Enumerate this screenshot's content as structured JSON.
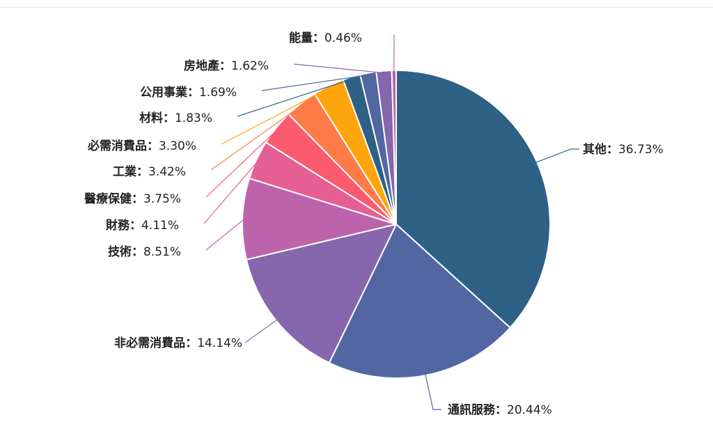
{
  "chart_data": {
    "type": "pie",
    "slices": [
      {
        "name": "其他",
        "value": 36.73,
        "label": "36.73%",
        "color": "#2d6186"
      },
      {
        "name": "通訊服務",
        "value": 20.44,
        "label": "20.44%",
        "color": "#5267a2"
      },
      {
        "name": "非必需消費品",
        "value": 14.14,
        "label": "14.14%",
        "color": "#8666ad"
      },
      {
        "name": "技術",
        "value": 8.51,
        "label": "8.51%",
        "color": "#bc63ab"
      },
      {
        "name": "財務",
        "value": 4.11,
        "label": "4.11%",
        "color": "#e65f93"
      },
      {
        "name": "醫療保健",
        "value": 3.75,
        "label": "3.75%",
        "color": "#fb5b6e"
      },
      {
        "name": "工業",
        "value": 3.42,
        "label": "3.42%",
        "color": "#fe7b48"
      },
      {
        "name": "必需消費品",
        "value": 3.3,
        "label": "3.30%",
        "color": "#fea50d"
      },
      {
        "name": "材料",
        "value": 1.83,
        "label": "1.83%",
        "color": "#2d6186"
      },
      {
        "name": "公用事業",
        "value": 1.69,
        "label": "1.69%",
        "color": "#5267a2"
      },
      {
        "name": "房地產",
        "value": 1.62,
        "label": "1.62%",
        "color": "#8666ad"
      },
      {
        "name": "能量",
        "value": 0.46,
        "label": "0.46%",
        "color": "#bc63ab"
      }
    ],
    "separator": "："
  }
}
